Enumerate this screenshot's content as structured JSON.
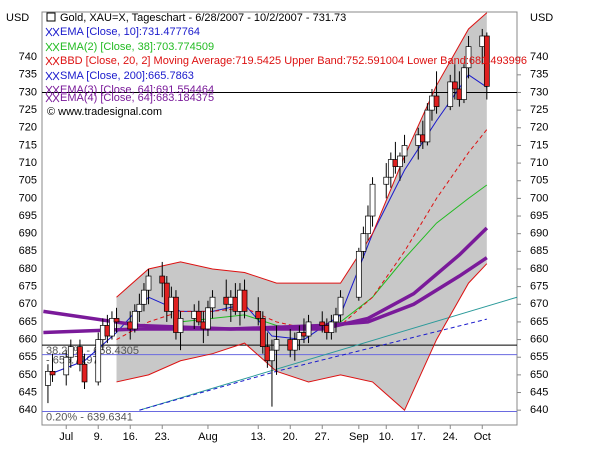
{
  "chart_data": {
    "type": "candlestick",
    "title": "Gold, XAU=X, Tageschart - 6/28/2007 - 10/2/2007 - 731.73",
    "y_unit": "USD",
    "copyright": "© www.tradesignal.com",
    "xlim": [
      -1.3,
      102.6
    ],
    "ylim": [
      635.8,
      752.8
    ],
    "xticks": [
      {
        "value": 4,
        "label": "Jul"
      },
      {
        "value": 11,
        "label": "9."
      },
      {
        "value": 18,
        "label": "16."
      },
      {
        "value": 25,
        "label": "23."
      },
      {
        "value": 35,
        "label": "Aug"
      },
      {
        "value": 46,
        "label": "13."
      },
      {
        "value": 53,
        "label": "20."
      },
      {
        "value": 60,
        "label": "27."
      },
      {
        "value": 68,
        "label": "Sep"
      },
      {
        "value": 74,
        "label": "10."
      },
      {
        "value": 81,
        "label": "17."
      },
      {
        "value": 88,
        "label": "24."
      },
      {
        "value": 95,
        "label": "Oct"
      }
    ],
    "yticks": [
      640,
      645,
      650,
      655,
      660,
      665,
      670,
      675,
      680,
      685,
      690,
      695,
      700,
      705,
      710,
      715,
      720,
      725,
      730,
      735,
      740
    ],
    "candles": {
      "up_color": "#ffffff",
      "down_color": "#e02020",
      "x": [
        0,
        1,
        4,
        5,
        7,
        8,
        11,
        12,
        13,
        14,
        15,
        18,
        19,
        20,
        21,
        22,
        25,
        26,
        27,
        28,
        29,
        32,
        33,
        34,
        35,
        36,
        39,
        40,
        41,
        42,
        43,
        46,
        47,
        48,
        49,
        50,
        53,
        54,
        55,
        56,
        57,
        60,
        61,
        62,
        63,
        64,
        68,
        69,
        70,
        71,
        74,
        75,
        76,
        77,
        78,
        81,
        82,
        83,
        84,
        85,
        88,
        89,
        90,
        91,
        92,
        95,
        96
      ],
      "open": [
        647,
        651,
        650,
        655,
        658,
        653,
        648,
        660,
        664,
        661,
        666,
        665,
        663,
        668,
        670,
        674,
        678,
        676,
        668,
        672,
        662,
        666,
        668,
        665,
        663,
        669,
        672,
        670,
        672,
        668,
        674,
        668,
        666,
        658,
        654,
        657,
        660,
        657,
        660,
        662,
        661,
        665,
        664,
        662,
        665,
        667,
        672,
        685,
        690,
        695,
        704,
        706,
        711,
        709,
        712,
        715,
        718,
        716,
        725,
        729,
        726,
        733,
        731,
        728,
        737,
        743,
        746
      ],
      "high": [
        653,
        656,
        657,
        660,
        660,
        656,
        662,
        666,
        667,
        668,
        669,
        668,
        670,
        673,
        676,
        680,
        682,
        678,
        675,
        674,
        668,
        670,
        671,
        668,
        671,
        674,
        677,
        674,
        676,
        676,
        677,
        672,
        668,
        662,
        660,
        664,
        663,
        662,
        664,
        666,
        667,
        668,
        666,
        667,
        669,
        674,
        686,
        692,
        698,
        706,
        710,
        713,
        716,
        713,
        718,
        720,
        722,
        727,
        731,
        736,
        735,
        738,
        736,
        738,
        746,
        748,
        747
      ],
      "low": [
        642,
        648,
        647,
        652,
        651,
        646,
        647,
        657,
        659,
        660,
        662,
        660,
        662,
        665,
        668,
        670,
        672,
        665,
        666,
        660,
        657,
        663,
        664,
        659,
        661,
        666,
        668,
        665,
        667,
        664,
        666,
        664,
        656,
        652,
        641,
        650,
        655,
        654,
        657,
        659,
        659,
        662,
        660,
        660,
        662,
        665,
        671,
        683,
        688,
        692,
        700,
        703,
        707,
        705,
        710,
        711,
        714,
        715,
        722,
        724,
        725,
        728,
        726,
        727,
        734,
        738,
        728
      ],
      "close": [
        651,
        650,
        655,
        658,
        653,
        648,
        660,
        664,
        661,
        666,
        665,
        663,
        668,
        670,
        674,
        678,
        676,
        668,
        672,
        662,
        666,
        668,
        665,
        663,
        669,
        672,
        670,
        672,
        668,
        674,
        668,
        666,
        658,
        654,
        657,
        660,
        657,
        660,
        662,
        661,
        665,
        664,
        662,
        665,
        667,
        672,
        685,
        690,
        695,
        704,
        706,
        711,
        709,
        712,
        715,
        718,
        716,
        725,
        729,
        726,
        733,
        731,
        728,
        737,
        743,
        746,
        731.73
      ]
    },
    "indicators": [
      {
        "name": "EMA [Close, 10]:731.477764",
        "color": "#1a1acc",
        "width": 1,
        "x": [
          0,
          8,
          15,
          22,
          29,
          36,
          43,
          49,
          56,
          64,
          71,
          78,
          85,
          92,
          96
        ],
        "values": [
          650,
          654,
          662,
          672,
          668,
          668,
          670,
          661,
          660,
          667,
          690,
          708,
          722,
          735,
          731.5
        ]
      },
      {
        "name": "EMA(2) [Close, 38]:703.774509",
        "color": "#22bb22",
        "width": 1,
        "x": [
          29,
          36,
          43,
          50,
          57,
          64,
          71,
          78,
          85,
          92,
          96
        ],
        "values": [
          665,
          666,
          667,
          664,
          663,
          665,
          672,
          683,
          693,
          700,
          703.8
        ]
      },
      {
        "name": "BBD [Close, 20, 2] Moving Average:719.5425 Upper Band:752.591004 Lower Band:681.493996",
        "color": "#dd1111",
        "width": 1,
        "dash": "4 3",
        "x": [
          15,
          22,
          29,
          36,
          43,
          50,
          57,
          64,
          71,
          78,
          85,
          92,
          96
        ],
        "values": [
          660,
          665,
          668,
          668,
          669,
          665,
          663,
          664,
          672,
          685,
          700,
          713,
          719.5
        ],
        "upper": [
          672,
          680,
          682,
          680,
          679,
          676,
          676,
          676,
          690,
          712,
          732,
          748,
          752.6
        ],
        "lower": [
          648,
          650,
          654,
          656,
          659,
          651,
          648,
          650,
          648,
          640,
          660,
          676,
          681.5
        ],
        "band_fill": "#c8c8c8"
      },
      {
        "name": "SMA [Close, 200]:665.7863",
        "color": "#1a1acc",
        "width": 1,
        "dash": "4 3",
        "x": [
          20,
          50,
          96
        ],
        "values": [
          640,
          651,
          665.8
        ]
      },
      {
        "name": "EMA(3) [Close, 64]:691.554464",
        "color": "#7a1a9a",
        "width": 3.5,
        "x": [
          -1,
          20,
          40,
          60,
          70,
          80,
          90,
          96
        ],
        "values": [
          668,
          664,
          663,
          663,
          666,
          673,
          684,
          691.6
        ]
      },
      {
        "name": "EMA(4) [Close, 64]:683.184375",
        "color": "#7a1a9a",
        "width": 3.5,
        "x": [
          -1,
          20,
          40,
          60,
          70,
          80,
          90,
          96
        ],
        "values": [
          662,
          663,
          663,
          664,
          665,
          670,
          678,
          683.2
        ]
      }
    ],
    "trendline": {
      "color": "#2a9a9a",
      "x": [
        20,
        102.6
      ],
      "values": [
        640,
        672
      ]
    },
    "hlines": [
      {
        "value": 730,
        "color": "#000000"
      },
      {
        "value": 658.4305,
        "color": "#000000",
        "label": "38.20% - 658.4305"
      },
      {
        "value": 655.7197,
        "color": "#6a6ae0",
        "label": "- 655.7197"
      },
      {
        "value": 639.6341,
        "color": "#6a6ae0",
        "label": "0.20% - 639.6341"
      }
    ]
  }
}
